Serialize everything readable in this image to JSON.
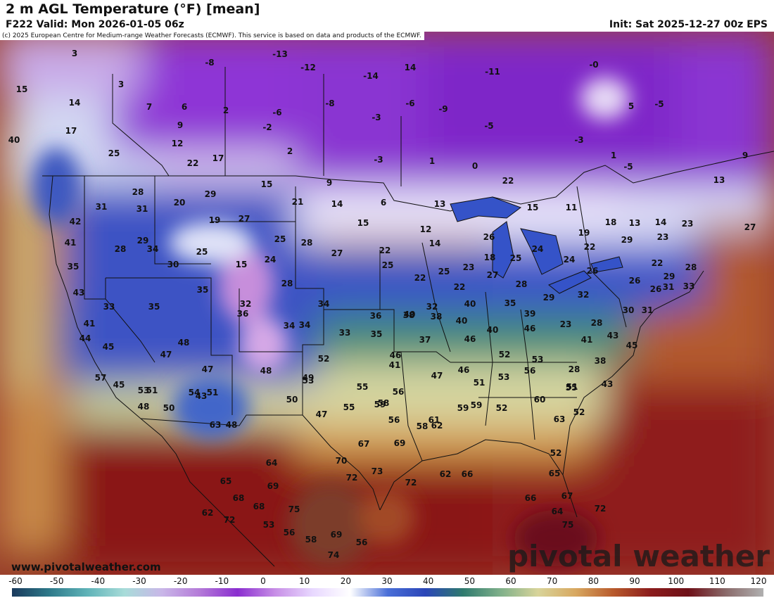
{
  "header": {
    "title": "2 m AGL Temperature (°F) [mean]",
    "valid": "F222 Valid: Mon 2026-01-05 06z",
    "init": "Init: Sat 2025-12-27 00z EPS"
  },
  "copyright": "(c) 2025 European Centre for Medium-range Weather Forecasts (ECMWF). This service is based on data and products of the ECMWF.",
  "footer": {
    "site": "www.pivotalweather.com",
    "brand": "pivotal weather"
  },
  "colorbar": {
    "ticks": [
      "-60",
      "-50",
      "-40",
      "-30",
      "-20",
      "-10",
      "0",
      "10",
      "20",
      "30",
      "40",
      "50",
      "60",
      "70",
      "80",
      "90",
      "100",
      "110",
      "120"
    ],
    "stops": [
      "#1a3a5c",
      "#2e7a8a",
      "#5fb3b8",
      "#a8dcd9",
      "#c9b6e8",
      "#b47ad8",
      "#8a2ecf",
      "#c78ee6",
      "#e8d8ff",
      "#ffffff",
      "#4a6fd8",
      "#2b46b8",
      "#2f7a6e",
      "#7fb08a",
      "#d8d49a",
      "#d8a860",
      "#b85a2c",
      "#8b1c1c",
      "#6e1018",
      "#8a6a6a",
      "#b0b0b0"
    ]
  },
  "map_values": [
    "3",
    "15",
    "14",
    "17",
    "40",
    "25",
    "3",
    "7",
    "6",
    "9",
    "12",
    "22",
    "17",
    "-8",
    "2",
    "-13",
    "-6",
    "-2",
    "2",
    "-12",
    "-14",
    "14",
    "-8",
    "-3",
    "-6",
    "-9",
    "-5",
    "-0",
    "-3",
    "1",
    "0",
    "-11",
    "-3",
    "5",
    "-5",
    "1",
    "-5",
    "9",
    "13",
    "31",
    "42",
    "41",
    "35",
    "43",
    "28",
    "31",
    "29",
    "28",
    "34",
    "30",
    "25",
    "20",
    "29",
    "19",
    "27",
    "15",
    "15",
    "25",
    "24",
    "21",
    "9",
    "14",
    "6",
    "15",
    "13",
    "12",
    "14",
    "22",
    "28",
    "27",
    "28",
    "25",
    "22",
    "25",
    "23",
    "22",
    "26",
    "18",
    "22",
    "25",
    "24",
    "27",
    "28",
    "11",
    "15",
    "19",
    "22",
    "24",
    "26",
    "18",
    "29",
    "13",
    "14",
    "23",
    "22",
    "23",
    "27",
    "26",
    "26",
    "28",
    "29",
    "31",
    "32",
    "32",
    "33",
    "31",
    "34",
    "32",
    "35",
    "34",
    "40",
    "35",
    "39",
    "29",
    "23",
    "28",
    "30",
    "33",
    "35",
    "36",
    "34",
    "33",
    "35",
    "38",
    "38",
    "36",
    "40",
    "40",
    "37",
    "40",
    "46",
    "46",
    "41",
    "43",
    "45",
    "41",
    "44",
    "45",
    "48",
    "47",
    "46",
    "41",
    "47",
    "46",
    "52",
    "53",
    "28",
    "38",
    "51",
    "43",
    "47",
    "48",
    "43",
    "49",
    "50",
    "52",
    "53",
    "55",
    "56",
    "51",
    "53",
    "56",
    "55",
    "57",
    "45",
    "48",
    "50",
    "53",
    "51",
    "54",
    "51",
    "48",
    "47",
    "55",
    "58",
    "56",
    "58",
    "59",
    "61",
    "62",
    "59",
    "59",
    "52",
    "60",
    "63",
    "52",
    "52",
    "63",
    "65",
    "64",
    "69",
    "67",
    "69",
    "70",
    "73",
    "72",
    "72",
    "62",
    "66",
    "65",
    "67",
    "64",
    "66",
    "62",
    "68",
    "68",
    "72",
    "53",
    "56",
    "58",
    "69",
    "56",
    "75",
    "74",
    "72",
    "75"
  ]
}
